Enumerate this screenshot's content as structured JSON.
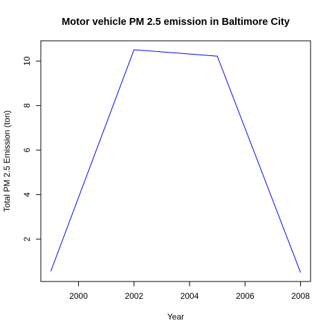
{
  "chart_data": {
    "type": "line",
    "title": "Motor vehicle PM 2.5 emission in Baltimore City",
    "xlabel": "Year",
    "ylabel": "Total PM 2.5 Emission (ton)",
    "x": [
      1999,
      2002,
      2005,
      2008
    ],
    "series": [
      {
        "values": [
          0.56,
          10.51,
          10.22,
          0.5
        ]
      }
    ],
    "xlim": [
      1999,
      2008
    ],
    "ylim": [
      0.5,
      10.51
    ],
    "xticks": [
      2000,
      2002,
      2004,
      2006,
      2008
    ],
    "xtick_labels": [
      "2000",
      "2002",
      "2004",
      "2006",
      "2008"
    ],
    "yticks": [
      2,
      4,
      6,
      8,
      10
    ],
    "ytick_labels": [
      "2",
      "4",
      "6",
      "8",
      "10"
    ],
    "grid": false,
    "color": "#0000ff"
  }
}
